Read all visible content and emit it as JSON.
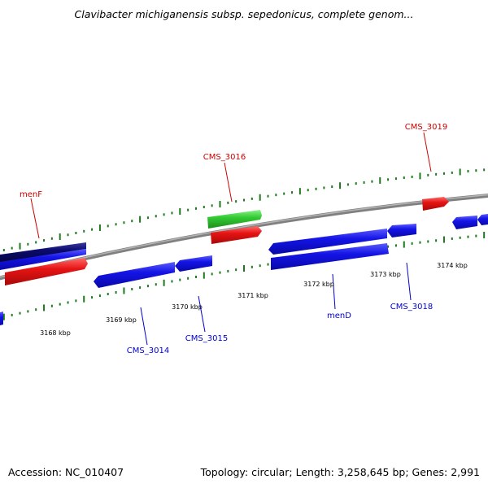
{
  "title": "Clavibacter michiganensis subsp. sepedonicus, complete genom...",
  "footer": {
    "accession": "Accession: NC_010407",
    "summary": "Topology: circular; Length: 3,258,645 bp; Genes: 2,991"
  },
  "colors": {
    "backbone": "#8a8a8a",
    "tick": "#1d7a1d",
    "red_label": "#cc0000",
    "blue_label": "#0000cc",
    "gene_blue": "#1414e6",
    "gene_red": "#e61414",
    "gene_green": "#33cc33",
    "gene_navy": "#0a0a6e"
  },
  "scale_labels": [
    "3168 kbp",
    "3169 kbp",
    "3170 kbp",
    "3171 kbp",
    "3172 kbp",
    "3173 kbp",
    "3174 kbp"
  ],
  "gene_labels": [
    "menF",
    "CMS_3016",
    "CMS_3019",
    "CMS_3014",
    "CMS_3015",
    "menD",
    "CMS_3018"
  ]
}
